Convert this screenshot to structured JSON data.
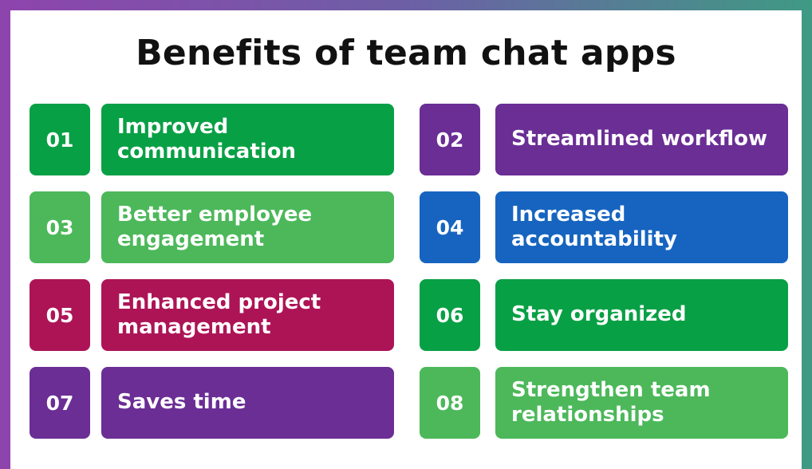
{
  "title": "Benefits of team chat apps",
  "items": [
    {
      "number": "01",
      "label": "Improved\ncommunication",
      "color": "#08a045"
    },
    {
      "number": "02",
      "label": "Streamlined workflow",
      "color": "#6a2e95"
    },
    {
      "number": "03",
      "label": "Better employee\nengagement",
      "color": "#4cb85a"
    },
    {
      "number": "04",
      "label": "Increased\naccountability",
      "color": "#1664c0"
    },
    {
      "number": "05",
      "label": "Enhanced project\nmanagement",
      "color": "#ad1456"
    },
    {
      "number": "06",
      "label": "Stay organized",
      "color": "#08a045"
    },
    {
      "number": "07",
      "label": "Saves time",
      "color": "#6a2e95"
    },
    {
      "number": "08",
      "label": "Strengthen team\nrelationships",
      "color": "#4cb85a"
    }
  ]
}
